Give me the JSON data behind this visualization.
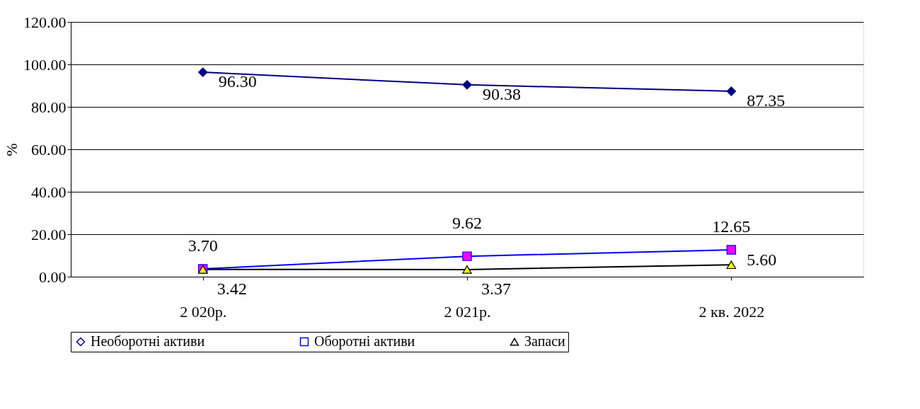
{
  "chart_data": {
    "type": "line",
    "ylabel": "%",
    "categories": [
      "2 020р.",
      "2 021р.",
      "2 кв. 2022"
    ],
    "series": [
      {
        "name": "Необоротні активи",
        "color": "#000080",
        "colors": [
          "#000080",
          "#000080",
          "#000080"
        ],
        "marker": "diamond",
        "values": [
          96.3,
          90.38,
          87.35
        ],
        "value_labels": [
          "96.30",
          "90.38",
          "87.35"
        ]
      },
      {
        "name": "Оборотні активи",
        "color": "#0000ff",
        "colors": [
          "#ff00ff",
          "#ff00ff",
          "#ff00ff"
        ],
        "marker": "square",
        "values": [
          3.7,
          9.62,
          12.65
        ],
        "value_labels": [
          "3.70",
          "9.62",
          "12.65"
        ]
      },
      {
        "name": "Запаси",
        "color": "#000000",
        "colors": [
          "#ffff00",
          "#ffff00",
          "#ffff00"
        ],
        "marker": "triangle",
        "values": [
          3.42,
          3.37,
          5.6
        ],
        "value_labels": [
          "3.42",
          "3.37",
          "5.60"
        ]
      }
    ],
    "ylim": [
      0,
      120
    ],
    "yticks": [
      {
        "value": 0,
        "label": "0.00"
      },
      {
        "value": 20,
        "label": "20.00"
      },
      {
        "value": 40,
        "label": "40.00"
      },
      {
        "value": 60,
        "label": "60.00"
      },
      {
        "value": 80,
        "label": "80.00"
      },
      {
        "value": 100,
        "label": "100.00"
      },
      {
        "value": 120,
        "label": "120.00"
      }
    ],
    "grid": "y",
    "legend": "bottom"
  }
}
